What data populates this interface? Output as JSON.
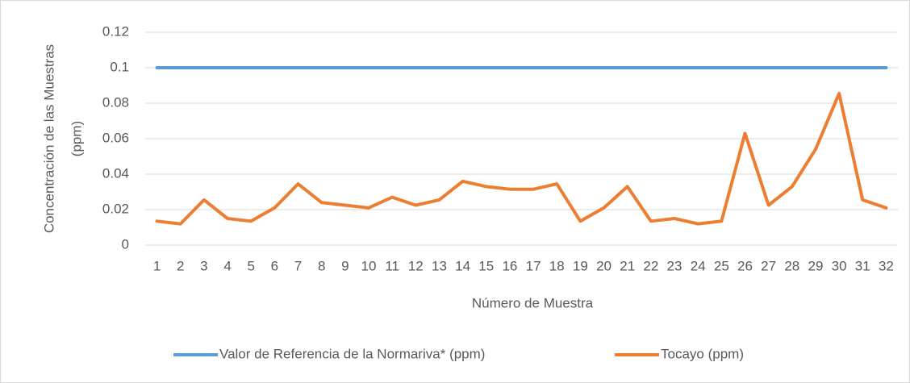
{
  "chart_data": {
    "type": "line",
    "ylabel": [
      "Concentración de las Muestras",
      "(ppm)"
    ],
    "xlabel": "Número de Muestra",
    "categories": [
      1,
      2,
      3,
      4,
      5,
      6,
      7,
      8,
      9,
      10,
      11,
      12,
      13,
      14,
      15,
      16,
      17,
      18,
      19,
      20,
      21,
      22,
      23,
      24,
      25,
      26,
      27,
      28,
      29,
      30,
      31,
      32
    ],
    "series": [
      {
        "name": "Valor de Referencia de la Normariva* (ppm)",
        "color": "#5b9bd5",
        "values": [
          0.1,
          0.1,
          0.1,
          0.1,
          0.1,
          0.1,
          0.1,
          0.1,
          0.1,
          0.1,
          0.1,
          0.1,
          0.1,
          0.1,
          0.1,
          0.1,
          0.1,
          0.1,
          0.1,
          0.1,
          0.1,
          0.1,
          0.1,
          0.1,
          0.1,
          0.1,
          0.1,
          0.1,
          0.1,
          0.1,
          0.1,
          0.1
        ]
      },
      {
        "name": "Tocayo (ppm)",
        "color": "#ed7d31",
        "values": [
          0.0135,
          0.012,
          0.0255,
          0.015,
          0.0135,
          0.021,
          0.0345,
          0.024,
          0.0225,
          0.021,
          0.027,
          0.0225,
          0.0255,
          0.036,
          0.033,
          0.0315,
          0.0315,
          0.0345,
          0.0135,
          0.021,
          0.033,
          0.0135,
          0.015,
          0.012,
          0.0135,
          0.063,
          0.0225,
          0.033,
          0.054,
          0.0855,
          0.0255,
          0.021
        ]
      }
    ],
    "ylim": [
      0,
      0.12
    ],
    "yticks": [
      0,
      0.02,
      0.04,
      0.06,
      0.08,
      0.1,
      0.12
    ],
    "grid": true,
    "legend": "bottom"
  }
}
